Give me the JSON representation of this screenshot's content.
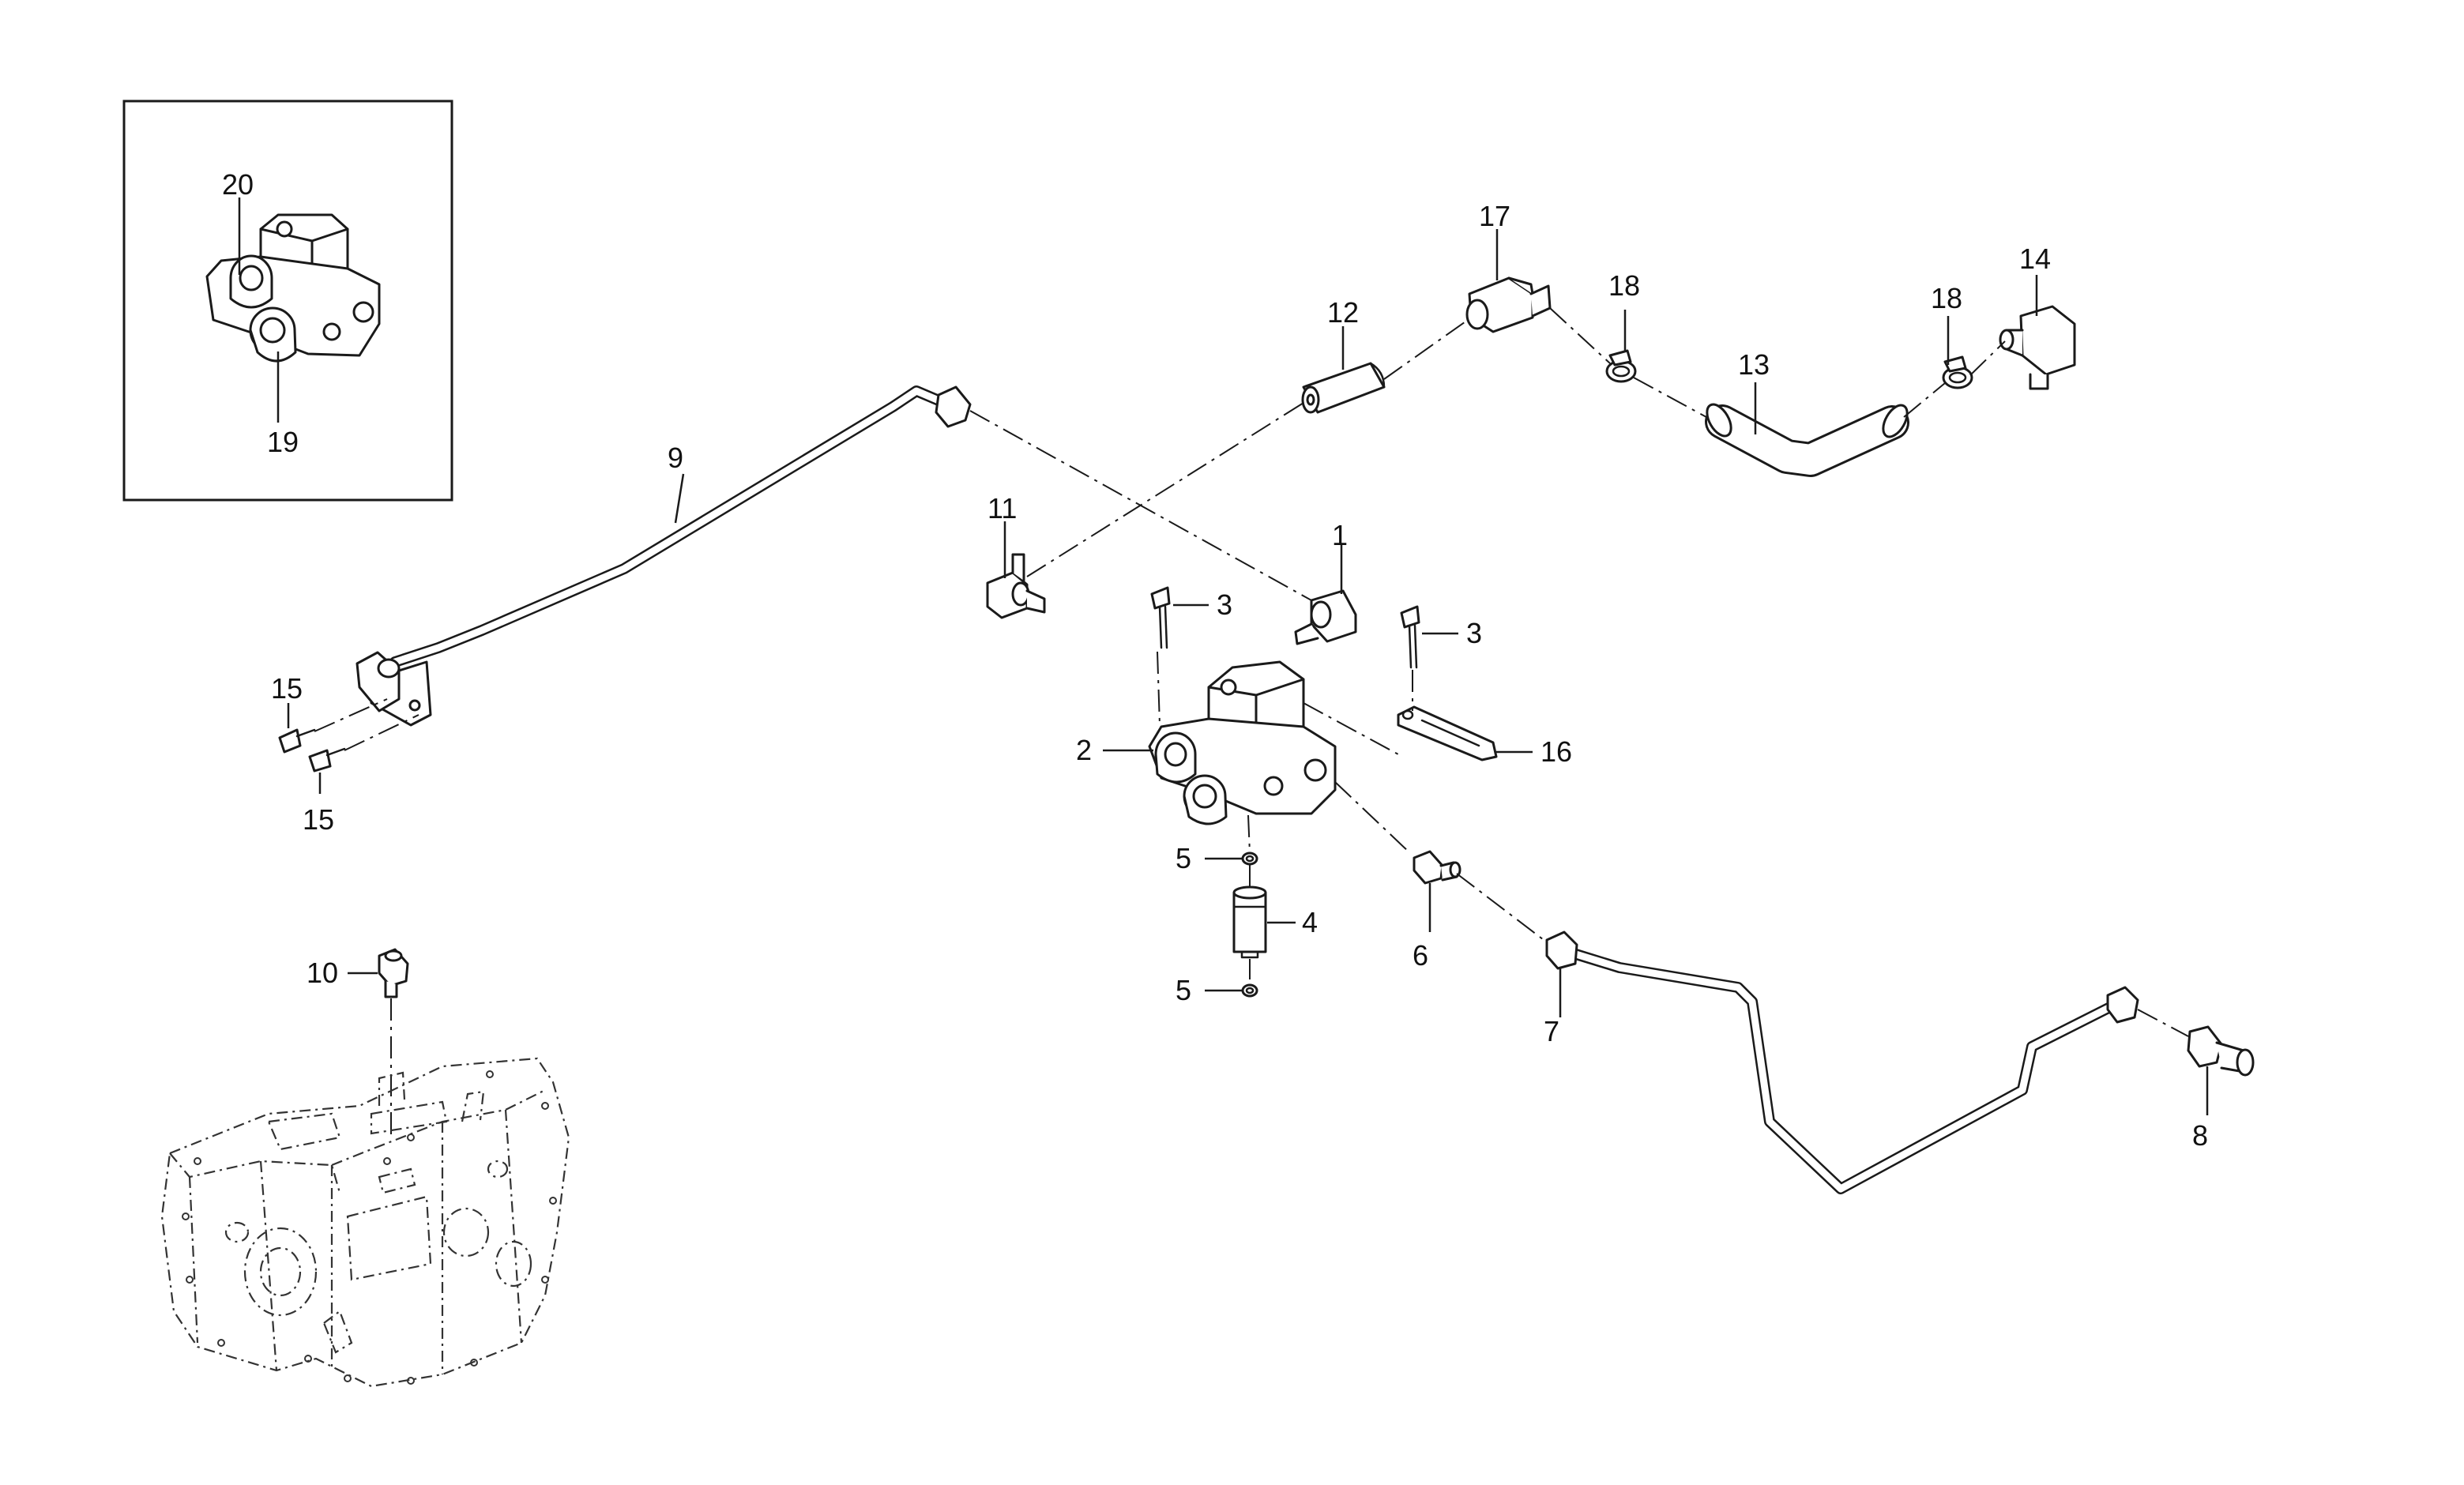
{
  "diagram": {
    "callouts": {
      "c1": "1",
      "c2": "2",
      "c3a": "3",
      "c3b": "3",
      "c4": "4",
      "c5a": "5",
      "c5b": "5",
      "c6": "6",
      "c7": "7",
      "c8": "8",
      "c9": "9",
      "c10": "10",
      "c11": "11",
      "c12": "12",
      "c13": "13",
      "c14": "14",
      "c15a": "15",
      "c15b": "15",
      "c16": "16",
      "c17": "17",
      "c18a": "18",
      "c18b": "18",
      "c19": "19",
      "c20": "20"
    },
    "colors": {
      "line": "#1a1a1a",
      "background": "#ffffff"
    }
  }
}
